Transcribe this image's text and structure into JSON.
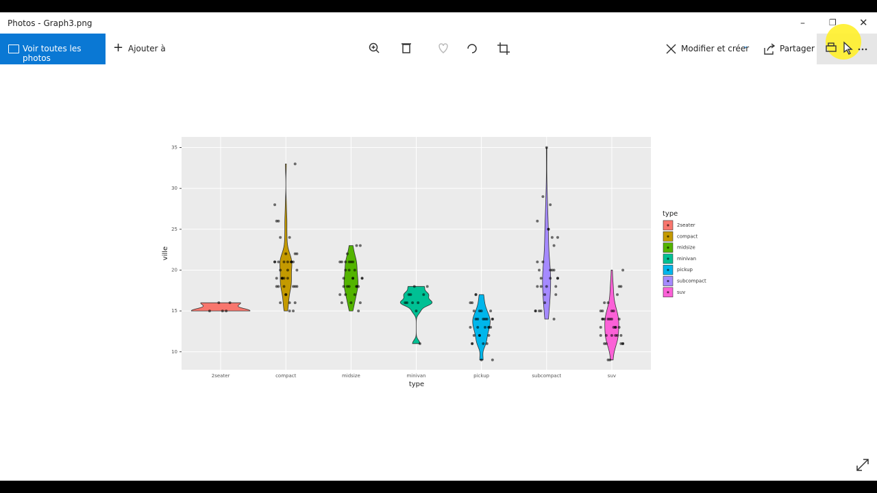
{
  "app": {
    "window_title": "Photos - Graph3.png",
    "toolbar": {
      "view_all": "Voir toutes les photos",
      "add_to": "Ajouter à",
      "edit_create": "Modifier et créer",
      "share": "Partager"
    }
  },
  "chart_data": {
    "type": "violin",
    "x_label": "type",
    "y_label": "ville",
    "legend_title": "type",
    "categories": [
      "2seater",
      "compact",
      "midsize",
      "minivan",
      "pickup",
      "subcompact",
      "suv"
    ],
    "series": [
      {
        "name": "2seater",
        "color": "#F8766D",
        "values": [
          15,
          16,
          15,
          15,
          16
        ]
      },
      {
        "name": "compact",
        "color": "#C49A00",
        "values": [
          18,
          21,
          20,
          21,
          16,
          18,
          18,
          18,
          16,
          17,
          19,
          21,
          21,
          22,
          21,
          21,
          19,
          24,
          26,
          20,
          15,
          15,
          17,
          19,
          26,
          28,
          33,
          21,
          19,
          18,
          20,
          19,
          22,
          21,
          24,
          22,
          19,
          18,
          21,
          16
        ]
      },
      {
        "name": "midsize",
        "color": "#53B400",
        "values": [
          18,
          21,
          20,
          21,
          16,
          19,
          15,
          17,
          16,
          18,
          19,
          21,
          23,
          23,
          19,
          18,
          17,
          21,
          19,
          18,
          20,
          21,
          22,
          18,
          17,
          16,
          18,
          19,
          21,
          20
        ]
      },
      {
        "name": "minivan",
        "color": "#00C094",
        "values": [
          16,
          18,
          17,
          16,
          18,
          17,
          11,
          15,
          16,
          17,
          16
        ]
      },
      {
        "name": "pickup",
        "color": "#00B6EB",
        "values": [
          15,
          14,
          11,
          14,
          12,
          13,
          9,
          13,
          15,
          16,
          13,
          14,
          11,
          12,
          17,
          11,
          9,
          13,
          14,
          15,
          14,
          12,
          13,
          15,
          11,
          14,
          12,
          17,
          16,
          14,
          13
        ]
      },
      {
        "name": "subcompact",
        "color": "#A58AFF",
        "values": [
          18,
          21,
          19,
          20,
          28,
          35,
          29,
          15,
          15,
          17,
          24,
          25,
          17,
          19,
          26,
          24,
          14,
          19,
          18,
          21,
          20,
          15,
          18,
          20,
          25,
          16,
          15,
          18,
          19,
          23,
          20
        ]
      },
      {
        "name": "suv",
        "color": "#FB61D7",
        "values": [
          14,
          11,
          14,
          13,
          12,
          16,
          14,
          15,
          11,
          12,
          13,
          14,
          11,
          15,
          20,
          18,
          12,
          14,
          9,
          11,
          13,
          18,
          17,
          15,
          9,
          12,
          14,
          11,
          13,
          13,
          15,
          14,
          16,
          12,
          12
        ]
      }
    ],
    "ylim": [
      7.8,
      36.3
    ],
    "yticks": [
      10,
      15,
      20,
      25,
      30,
      35
    ],
    "grid": true
  }
}
